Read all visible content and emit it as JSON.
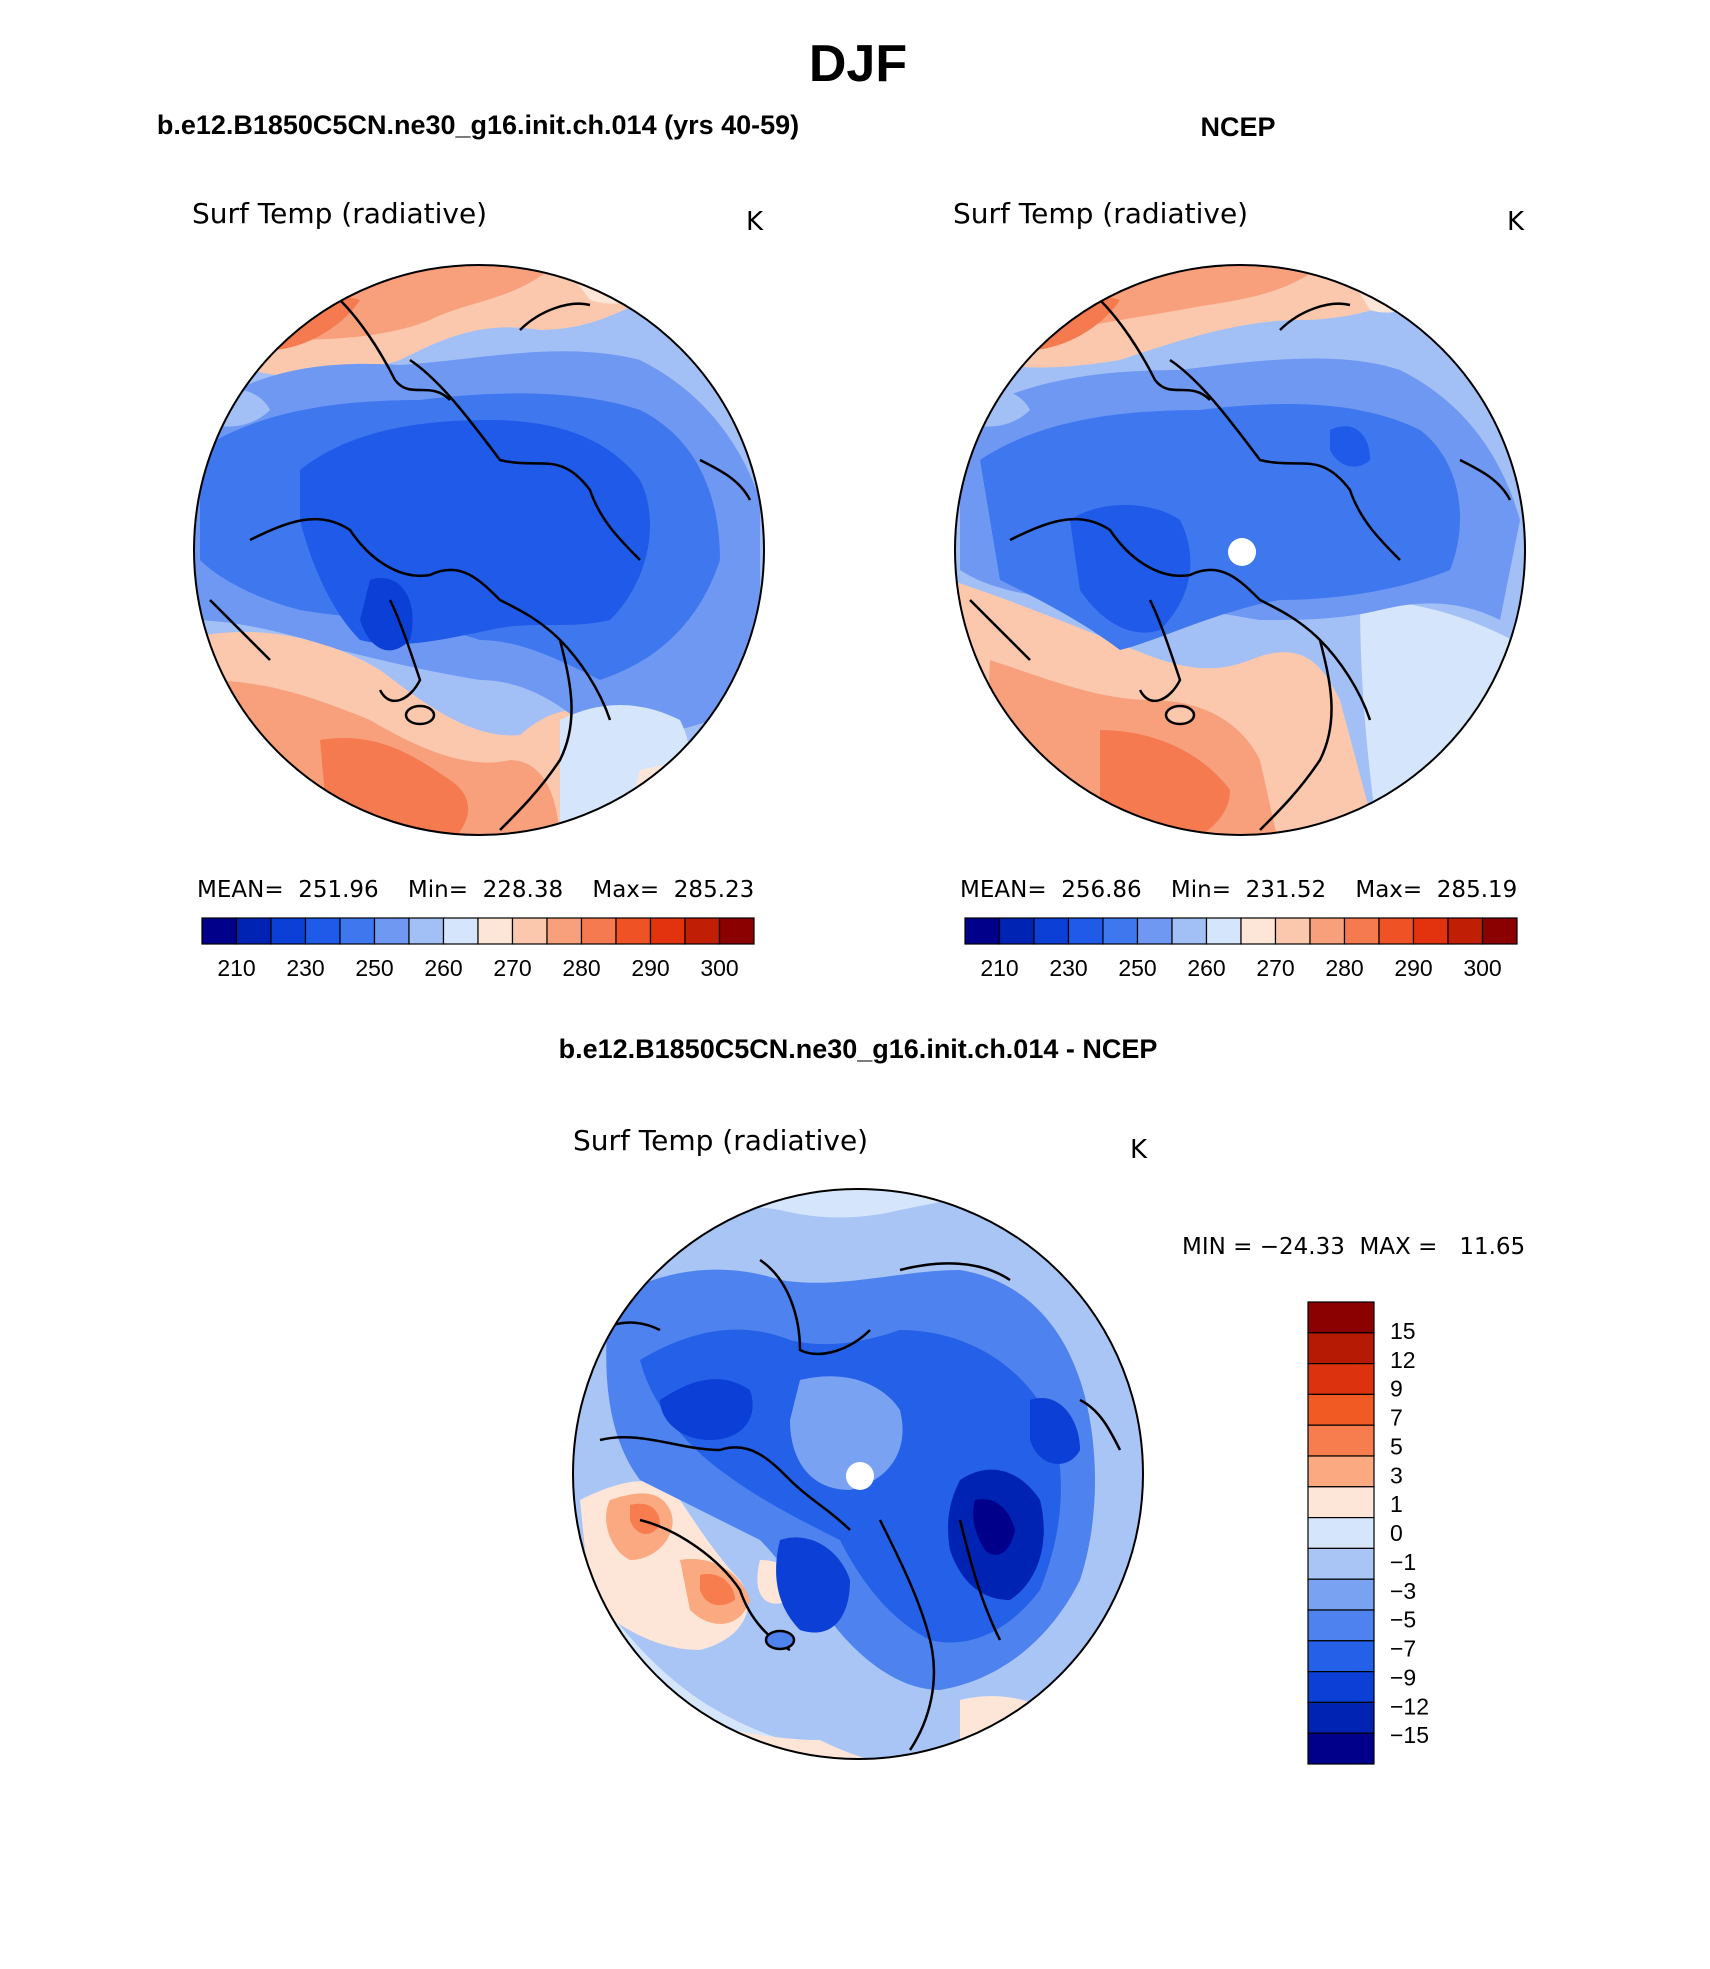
{
  "figure": {
    "title": "DJF",
    "left_heading": "b.e12.B1850C5CN.ne30_g16.init.ch.014 (yrs 40-59)",
    "right_heading": "NCEP",
    "diff_heading": "b.e12.B1850C5CN.ne30_g16.init.ch.014 - NCEP"
  },
  "panels": [
    {
      "id": "model",
      "variable": "Surf Temp (radiative)",
      "units": "K",
      "stats": "MEAN=  251.96    Min=  228.38    Max=  285.23",
      "colorbar_labels": [
        "210",
        "230",
        "250",
        "260",
        "270",
        "280",
        "290",
        "300"
      ],
      "pole_hole": false
    },
    {
      "id": "ncep",
      "variable": "Surf Temp (radiative)",
      "units": "K",
      "stats": "MEAN=  256.86    Min=  231.52    Max=  285.19",
      "colorbar_labels": [
        "210",
        "230",
        "250",
        "260",
        "270",
        "280",
        "290",
        "300"
      ],
      "pole_hole": true
    },
    {
      "id": "diff",
      "variable": "Surf Temp (radiative)",
      "units": "K",
      "stats": "MIN = −24.33  MAX =   11.65",
      "colorbar_labels": [
        "15",
        "12",
        "9",
        "7",
        "5",
        "3",
        "1",
        "0",
        "−1",
        "−3",
        "−5",
        "−7",
        "−9",
        "−12",
        "−15"
      ],
      "pole_hole": true
    }
  ],
  "palette": {
    "abs": [
      "#00008b",
      "#0023b4",
      "#0b3fd6",
      "#1f5ae8",
      "#3f77ef",
      "#6e98f2",
      "#a2bff6",
      "#d5e5fb",
      "#fde6d8",
      "#fbc8ad",
      "#f8a07c",
      "#f57a4f",
      "#ef5224",
      "#e3330e",
      "#c01f05",
      "#8b0000"
    ],
    "diff": [
      "#8b0000",
      "#b61a05",
      "#dc330e",
      "#f15a22",
      "#f77d4f",
      "#faa980",
      "#fde6d8",
      "#d5e5fb",
      "#a8c5f6",
      "#7aa2f2",
      "#4e82ee",
      "#2460e8",
      "#0b3fd6",
      "#0023b4",
      "#00008b"
    ]
  }
}
